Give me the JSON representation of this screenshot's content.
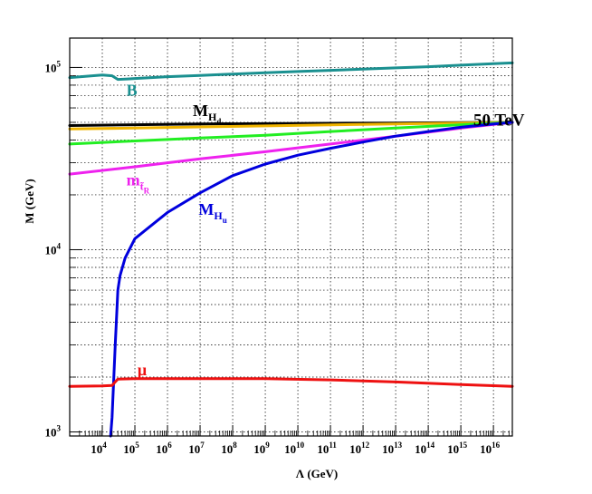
{
  "chart_data": {
    "type": "line",
    "title": "",
    "xlabel": "Λ (GeV)",
    "ylabel": "M (GeV)",
    "x_scale": "log",
    "y_scale": "log",
    "xlim": [
      1000,
      38000000000000000
    ],
    "ylim": [
      950,
      145000
    ],
    "grid": true,
    "x_ticks": [
      {
        "value": 10000,
        "base": "10",
        "exp": "4"
      },
      {
        "value": 100000,
        "base": "10",
        "exp": "5"
      },
      {
        "value": 1000000,
        "base": "10",
        "exp": "6"
      },
      {
        "value": 10000000,
        "base": "10",
        "exp": "7"
      },
      {
        "value": 100000000,
        "base": "10",
        "exp": "8"
      },
      {
        "value": 1000000000,
        "base": "10",
        "exp": "9"
      },
      {
        "value": 10000000000,
        "base": "10",
        "exp": "10"
      },
      {
        "value": 100000000000,
        "base": "10",
        "exp": "11"
      },
      {
        "value": 1000000000000,
        "base": "10",
        "exp": "12"
      },
      {
        "value": 10000000000000,
        "base": "10",
        "exp": "13"
      },
      {
        "value": 100000000000000,
        "base": "10",
        "exp": "14"
      },
      {
        "value": 1000000000000000,
        "base": "10",
        "exp": "15"
      },
      {
        "value": 10000000000000000,
        "base": "10",
        "exp": "16"
      }
    ],
    "y_ticks": [
      {
        "value": 1000,
        "base": "10",
        "exp": "3"
      },
      {
        "value": 10000,
        "base": "10",
        "exp": "4"
      },
      {
        "value": 100000,
        "base": "10",
        "exp": "5"
      }
    ],
    "series": [
      {
        "name": "B",
        "color": "#1a9090",
        "x": [
          1000,
          10000,
          20000,
          30000,
          60000,
          100000,
          1000000,
          10000000,
          100000000,
          1000000000,
          10000000000,
          100000000000,
          1000000000000,
          10000000000000,
          100000000000000,
          1000000000000000,
          10000000000000000,
          38000000000000000
        ],
        "y": [
          88000,
          91000,
          90000,
          86000,
          86500,
          87000,
          89000,
          90500,
          92000,
          93500,
          95000,
          96500,
          98000,
          99500,
          101000,
          103000,
          105000,
          106000
        ]
      },
      {
        "name": "M_Hd",
        "color": "#000000",
        "x": [
          1000,
          100000,
          10000000,
          1000000000,
          100000000000,
          10000000000000,
          1000000000000000,
          38000000000000000
        ],
        "y": [
          48000,
          48500,
          49000,
          49200,
          49400,
          49600,
          49800,
          50000
        ]
      },
      {
        "name": "",
        "color": "#f0b400",
        "x": [
          1000,
          100000,
          10000000,
          1000000000,
          100000000000,
          10000000000000,
          1000000000000000,
          38000000000000000
        ],
        "y": [
          46000,
          46500,
          47200,
          47800,
          48400,
          49000,
          49500,
          50000
        ]
      },
      {
        "name": "",
        "color": "#22ee22",
        "x": [
          1000,
          100000,
          10000000,
          1000000000,
          100000000000,
          10000000000000,
          1000000000000000,
          38000000000000000
        ],
        "y": [
          38000,
          39500,
          41000,
          42500,
          44500,
          46500,
          48500,
          50000
        ]
      },
      {
        "name": "m_tR",
        "color": "#ee22ee",
        "x": [
          1000,
          100000,
          10000000,
          1000000000,
          100000000000,
          10000000000000,
          1000000000000000,
          38000000000000000
        ],
        "y": [
          26000,
          28500,
          31500,
          34500,
          38000,
          42000,
          46500,
          50000
        ]
      },
      {
        "name": "M_Hu",
        "color": "#0000dd",
        "x": [
          18000,
          20000,
          25000,
          30000,
          35000,
          50000,
          100000,
          1000000,
          10000000,
          100000000,
          1000000000,
          10000000000,
          100000000000,
          1000000000000,
          10000000000000,
          100000000000000,
          1000000000000000,
          10000000000000000,
          38000000000000000
        ],
        "y": [
          950,
          1200,
          3000,
          6000,
          7200,
          9000,
          11500,
          16000,
          20500,
          25500,
          29500,
          33000,
          36000,
          39000,
          42000,
          44500,
          47000,
          49000,
          50000
        ]
      },
      {
        "name": "μ",
        "color": "#ee1111",
        "x": [
          1000,
          10000,
          20000,
          30000,
          100000,
          1000000000,
          100000000000,
          10000000000000,
          1000000000000000,
          38000000000000000
        ],
        "y": [
          1780,
          1790,
          1800,
          1950,
          1960,
          1960,
          1930,
          1880,
          1820,
          1780
        ]
      }
    ],
    "annotations": [
      {
        "text": "B",
        "color": "#1a9090",
        "x": 55000,
        "y": 70000
      },
      {
        "text": "M",
        "sub": "H",
        "subsub": "d",
        "color": "#000000",
        "x": 6000000,
        "y": 54000
      },
      {
        "text": "50 TeV",
        "color": "#000000",
        "x": 90000000000000000,
        "y": 48000
      },
      {
        "text": "m",
        "sub": "t̃",
        "subsub": "R",
        "color": "#ee22ee",
        "x": 55000,
        "y": 22500
      },
      {
        "text": "M",
        "sub": "H",
        "subsub": "u",
        "color": "#0000dd",
        "x": 9000000,
        "y": 15500
      },
      {
        "text": "μ",
        "color": "#ee1111",
        "x": 120000,
        "y": 2050
      }
    ]
  }
}
